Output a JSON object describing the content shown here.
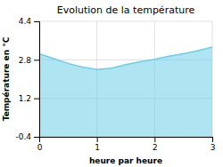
{
  "chart_data": {
    "type": "area",
    "title": "Evolution de la température",
    "xlabel": "heure par heure",
    "ylabel": "Température en °C",
    "x": [
      0,
      0.25,
      0.5,
      0.75,
      1.0,
      1.25,
      1.5,
      1.75,
      2.0,
      2.25,
      2.5,
      2.75,
      3.0
    ],
    "values": [
      3.05,
      2.85,
      2.65,
      2.5,
      2.4,
      2.45,
      2.6,
      2.72,
      2.82,
      2.95,
      3.05,
      3.18,
      3.33
    ],
    "color": "#6dcde8",
    "xlim": [
      0,
      3
    ],
    "ylim": [
      -0.4,
      4.4
    ],
    "xticks": [
      0,
      1,
      2,
      3
    ],
    "yticks": [
      -0.4,
      1.2,
      2.8,
      4.4
    ],
    "grid": true
  }
}
